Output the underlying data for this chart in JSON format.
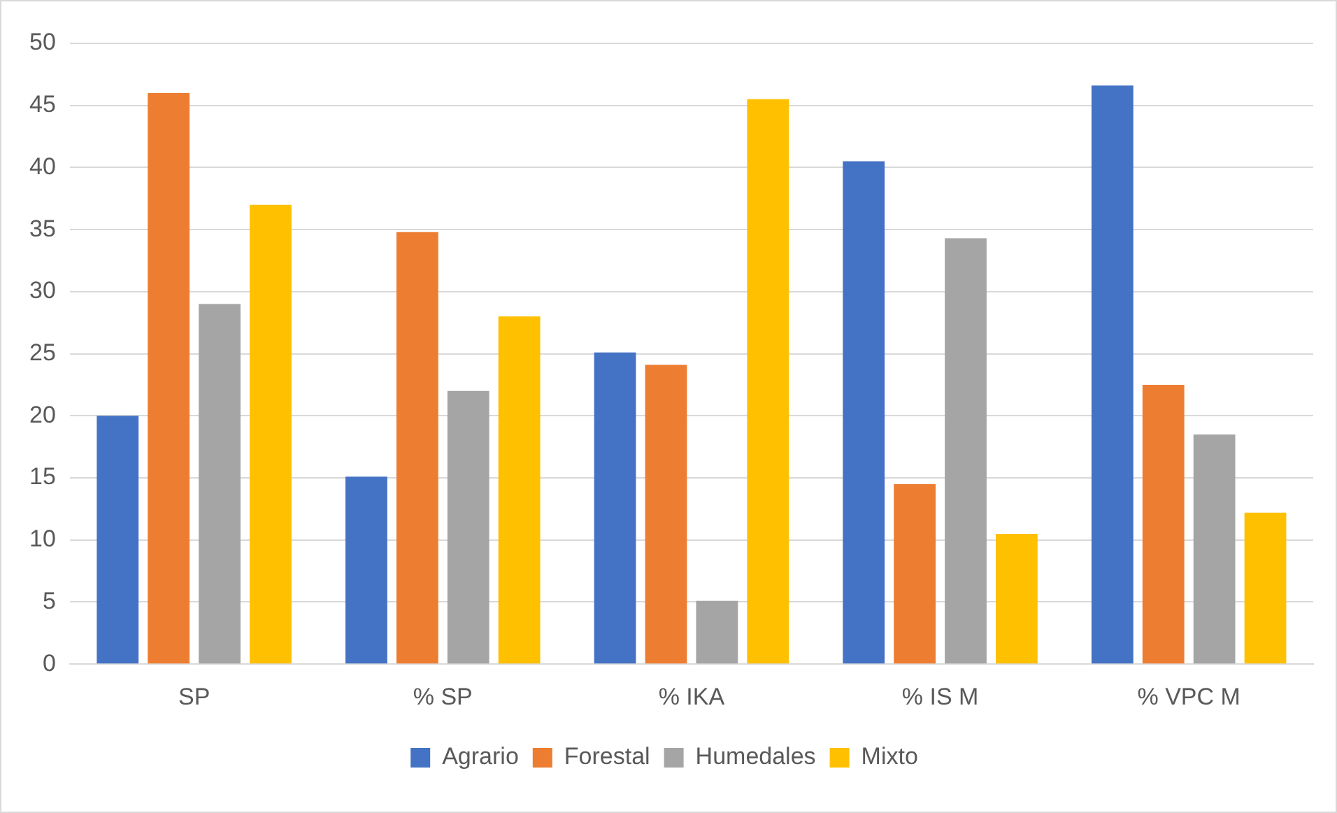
{
  "chart_data": {
    "type": "bar",
    "categories": [
      "SP",
      "% SP",
      "% IKA",
      "% IS M",
      "% VPC M"
    ],
    "series": [
      {
        "name": "Agrario",
        "color": "#4472c4",
        "values": [
          20,
          15.1,
          25.1,
          40.5,
          46.6
        ]
      },
      {
        "name": "Forestal",
        "color": "#ed7d31",
        "values": [
          46,
          34.8,
          24.1,
          14.5,
          22.5
        ]
      },
      {
        "name": "Humedales",
        "color": "#a5a5a5",
        "values": [
          29,
          22,
          5.1,
          34.3,
          18.5
        ]
      },
      {
        "name": "Mixto",
        "color": "#ffc000",
        "values": [
          37,
          28,
          45.5,
          10.5,
          12.2
        ]
      }
    ],
    "ylim": [
      0,
      50
    ],
    "yticks": [
      0,
      5,
      10,
      15,
      20,
      25,
      30,
      35,
      40,
      45,
      50
    ],
    "grid": "y",
    "legend": "bottom"
  }
}
